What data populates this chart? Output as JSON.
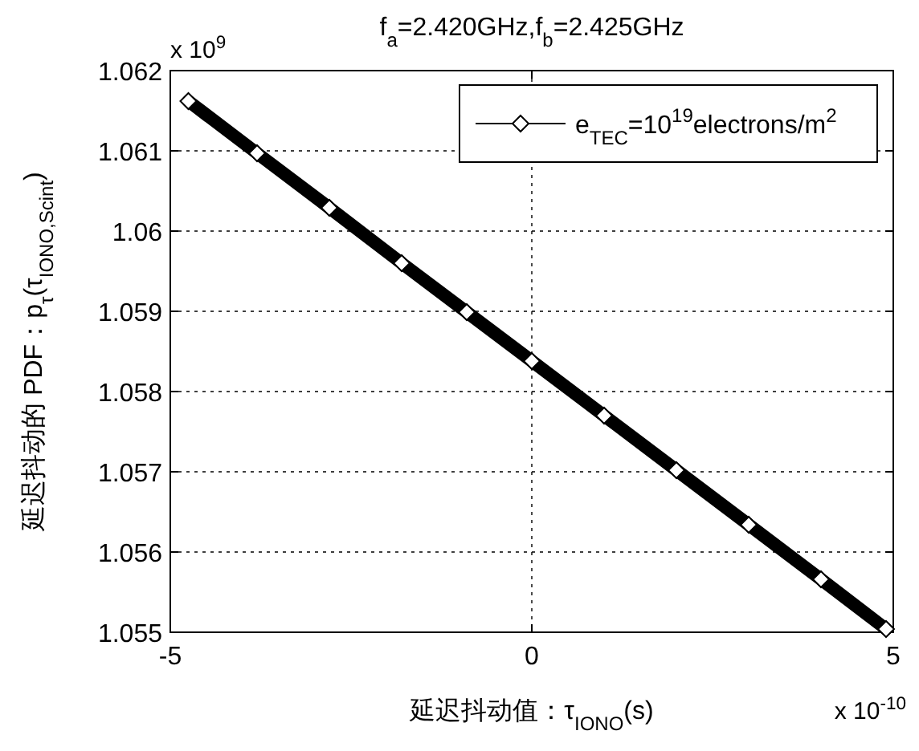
{
  "chart_data": {
    "type": "line",
    "title": "f$_{a}$=2.420GHz,f$_{b}$=2.425GHz",
    "xlabel": "延迟抖动值：τ$_{IONO}$(s)",
    "ylabel": "延迟抖动的 PDF：p$_{τ}$(τ$_{IONO,Scint}$)",
    "annotations": [
      "x 10$^{9}$",
      "x 10$^{-10}$"
    ],
    "series": [
      {
        "name": "e$_{TEC}$=10$^{19}$electrons/m$^{2}$",
        "color": "#000000",
        "x": [
          -4.75,
          -3.8,
          -2.8,
          -1.8,
          -0.9,
          0,
          1.0,
          2.0,
          3.0,
          4.0,
          4.9
        ],
        "values": [
          1.06162,
          1.06097,
          1.06029,
          1.0596,
          1.05899,
          1.05838,
          1.0577,
          1.05702,
          1.05634,
          1.05566,
          1.05504
        ]
      }
    ],
    "xlim": [
      -5,
      5
    ],
    "xticks": [
      -5,
      0,
      5
    ],
    "ylim": [
      1.055,
      1.062
    ],
    "yticks": [
      1.055,
      1.056,
      1.057,
      1.058,
      1.059,
      1.06,
      1.061,
      1.062
    ],
    "grid": true,
    "legend": "top right",
    "marker": "diamond",
    "line_style": "solid"
  }
}
